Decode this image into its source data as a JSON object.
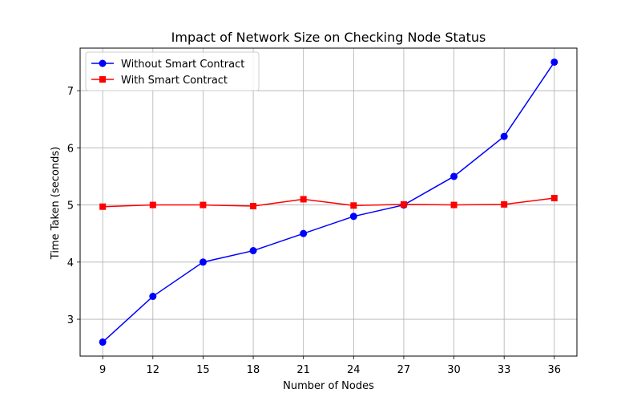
{
  "chart_data": {
    "type": "line",
    "title": "Impact of Network Size on Checking Node Status",
    "xlabel": "Number of Nodes",
    "ylabel": "Time Taken (seconds)",
    "x": [
      9,
      12,
      15,
      18,
      21,
      24,
      27,
      30,
      33,
      36
    ],
    "xlim": [
      7.65,
      37.35
    ],
    "ylim": [
      2.355,
      7.745
    ],
    "yticks": [
      3,
      4,
      5,
      6,
      7
    ],
    "grid": true,
    "legend_position": "top-left",
    "series": [
      {
        "name": "Without Smart Contract",
        "color": "#0000ff",
        "marker": "circle",
        "values": [
          2.6,
          3.4,
          4.0,
          4.2,
          4.5,
          4.8,
          5.0,
          5.5,
          6.2,
          7.5
        ]
      },
      {
        "name": "With Smart Contract",
        "color": "#ff0000",
        "marker": "square",
        "values": [
          4.97,
          5.0,
          5.0,
          4.98,
          5.1,
          4.99,
          5.01,
          5.0,
          5.01,
          5.12
        ]
      }
    ]
  }
}
